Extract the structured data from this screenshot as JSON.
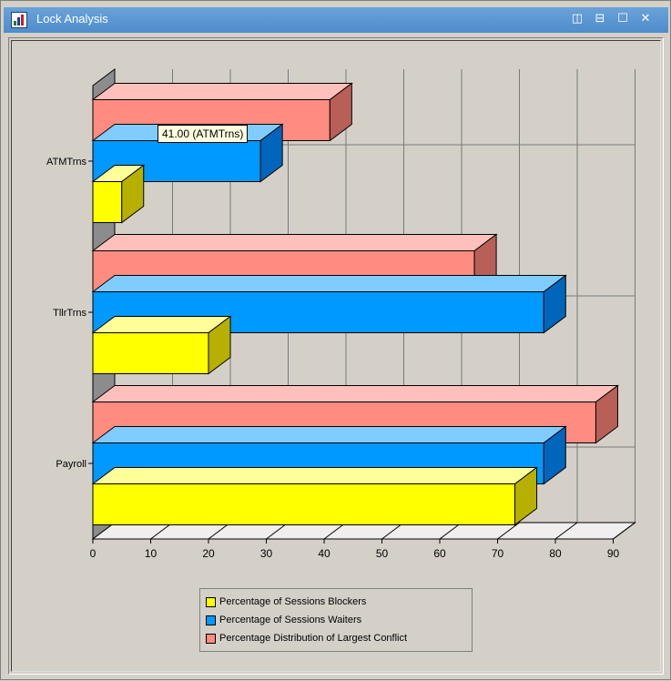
{
  "window": {
    "title": "Lock Analysis",
    "icon": "bar-chart-icon",
    "controls": [
      "tile-vertical-icon",
      "tile-horizontal-icon",
      "maximize-icon",
      "close-icon"
    ],
    "control_glyphs": [
      "◫",
      "⊟",
      "☐",
      "✕"
    ]
  },
  "tooltip": {
    "text": "41.00 (ATMTrns)"
  },
  "chart_data": {
    "type": "bar",
    "orientation": "horizontal",
    "style": "3d",
    "categories": [
      "ATMTrns",
      "TllrTrns",
      "Payroll"
    ],
    "series": [
      {
        "name": "Percentage of Sessions Blockers",
        "color": "#ffff00",
        "side": "#b8b000",
        "top": "#ffff99",
        "values": [
          5,
          20,
          73
        ]
      },
      {
        "name": "Percentage of Sessions Waiters",
        "color": "#0099ff",
        "side": "#0066bb",
        "top": "#80ccff",
        "values": [
          29,
          78,
          78
        ]
      },
      {
        "name": "Percentage Distribution of Largest Conflict",
        "color": "#ff8c80",
        "side": "#b86058",
        "top": "#ffc0bb",
        "values": [
          41,
          66,
          87
        ]
      }
    ],
    "xlim": [
      0,
      90
    ],
    "x_ticks": [
      "0",
      "10",
      "20",
      "30",
      "40",
      "50",
      "60",
      "70",
      "80",
      "90"
    ],
    "grid": true,
    "legend": "bottom"
  }
}
